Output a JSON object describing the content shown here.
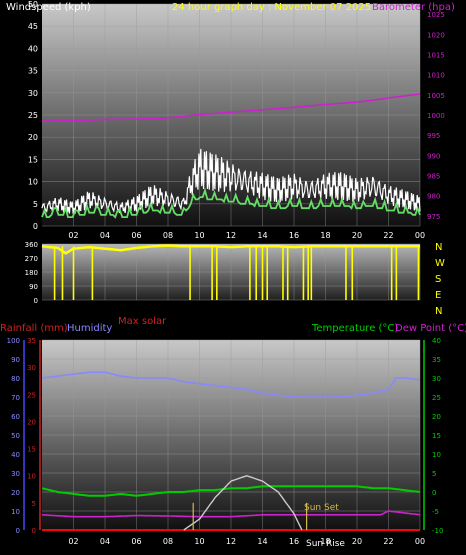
{
  "header": {
    "left_label": "Windspeed (kph)",
    "center_label": "24 hour graph day : November 07 2025",
    "right_label": "Barometer (hpa)"
  },
  "mid_labels": {
    "directions": [
      "N",
      "W",
      "S",
      "E",
      "N"
    ],
    "max_solar": "Max solar"
  },
  "bottom_header": {
    "rainfall": "Rainfall (mm)",
    "humidity": "Humidity",
    "temperature": "Temperature (°C)",
    "dew_point": "Dew Point (°C)"
  },
  "annotations": {
    "sun_set": "Sun Set",
    "sun_rise": "Sun Rise"
  },
  "colors": {
    "windspeed": "#ffffff",
    "gust": "#ffffff",
    "avg_wind": "#66dd66",
    "barometer": "#cc22cc",
    "direction": "#ffff00",
    "humidity": "#8888ff",
    "temperature": "#00cc00",
    "dew_point": "#cc22cc",
    "rainfall": "#ff0000",
    "solar": "#cccccc"
  },
  "chart_data": [
    {
      "type": "line",
      "name": "wind-and-pressure",
      "x_ticks": [
        "02",
        "04",
        "06",
        "08",
        "10",
        "12",
        "14",
        "16",
        "18",
        "20",
        "22",
        "00"
      ],
      "left_axis": {
        "label": "Windspeed (kph)",
        "ticks": [
          0,
          5,
          10,
          15,
          20,
          25,
          30,
          35,
          40,
          45,
          50
        ],
        "ylim": [
          0,
          50
        ]
      },
      "right_axis": {
        "label": "Barometer (hpa)",
        "ticks": [
          975,
          980,
          985,
          990,
          995,
          1000,
          1005,
          1010,
          1015,
          1020,
          1025
        ],
        "ylim": [
          972.5,
          1027.5
        ]
      },
      "series": [
        {
          "name": "Windspeed (kph)",
          "hours": [
            0,
            1,
            2,
            3,
            4,
            5,
            6,
            7,
            8,
            9,
            9.5,
            10,
            11,
            12,
            13,
            14,
            15,
            16,
            17,
            18,
            19,
            20,
            21,
            22,
            23,
            24
          ],
          "values": [
            4,
            5,
            4,
            6,
            5,
            4,
            5,
            7,
            6,
            5,
            10,
            13,
            12,
            11,
            10,
            9,
            8,
            9,
            8,
            9,
            9,
            8,
            9,
            7,
            6,
            5
          ]
        },
        {
          "name": "Barometer (hpa)",
          "hours": [
            0,
            2,
            4,
            6,
            8,
            10,
            12,
            14,
            16,
            18,
            20,
            22,
            24
          ],
          "values": [
            998.5,
            998.6,
            998.9,
            999.0,
            999.3,
            1000.1,
            1000.7,
            1001.3,
            1001.9,
            1002.6,
            1003.2,
            1004.2,
            1005.2
          ]
        }
      ]
    },
    {
      "type": "scatter",
      "name": "wind-direction",
      "y_ticks": [
        360,
        270,
        180,
        90,
        0
      ],
      "ylim": [
        0,
        360
      ],
      "series": [
        {
          "name": "Wind Direction",
          "hours": [
            0,
            0.5,
            1,
            1.5,
            2,
            3,
            4,
            5,
            6,
            7,
            8,
            9,
            10,
            11,
            12,
            13,
            14,
            15,
            16,
            17,
            18,
            19,
            20,
            21,
            22,
            23,
            24
          ],
          "values": [
            345,
            340,
            335,
            300,
            330,
            340,
            330,
            320,
            335,
            345,
            350,
            345,
            345,
            345,
            340,
            345,
            345,
            345,
            340,
            345,
            345,
            345,
            345,
            345,
            345,
            345,
            345
          ]
        }
      ]
    },
    {
      "type": "line",
      "name": "temperature-humidity-rain",
      "x_ticks": [
        "02",
        "04",
        "06",
        "08",
        "10",
        "12",
        "14",
        "16",
        "18",
        "20",
        "22",
        "00"
      ],
      "rain_axis": {
        "label": "Rainfall (mm)",
        "ticks": [
          0,
          5,
          10,
          15,
          20,
          25,
          30,
          35
        ],
        "ylim": [
          0,
          35
        ]
      },
      "humidity_axis": {
        "label": "Humidity",
        "ticks": [
          0,
          10,
          20,
          30,
          40,
          50,
          60,
          70,
          80,
          90,
          100
        ],
        "ylim": [
          0,
          100
        ]
      },
      "temp_axis": {
        "label": "Temperature (°C)",
        "ticks": [
          -10,
          -5,
          0,
          5,
          10,
          15,
          20,
          25,
          30,
          35,
          40
        ],
        "ylim": [
          -10,
          40
        ]
      },
      "series": [
        {
          "name": "Humidity",
          "hours": [
            0,
            1,
            2,
            3,
            4,
            5,
            6,
            7,
            8,
            9,
            10,
            11,
            12,
            13,
            14,
            15,
            16,
            17,
            18,
            19,
            20,
            21,
            22,
            22.5,
            23,
            24
          ],
          "values": [
            80,
            81,
            82,
            83,
            83,
            81,
            80,
            80,
            80,
            78,
            77,
            76,
            75,
            74,
            72,
            71,
            70,
            70,
            70,
            70,
            71,
            72,
            74,
            80,
            80,
            79
          ]
        },
        {
          "name": "Temperature (°C)",
          "hours": [
            0,
            1,
            2,
            3,
            4,
            5,
            6,
            7,
            8,
            9,
            10,
            11,
            12,
            13,
            14,
            15,
            16,
            17,
            18,
            19,
            20,
            21,
            22,
            23,
            24
          ],
          "values": [
            1,
            0,
            -0.5,
            -1,
            -1,
            -0.5,
            -1,
            -0.5,
            0,
            0,
            0.5,
            0.5,
            1,
            1,
            1.5,
            1.5,
            1.5,
            1.5,
            1.5,
            1.5,
            1.5,
            1,
            1,
            0.5,
            0
          ]
        },
        {
          "name": "Dew Point (°C)",
          "hours": [
            0,
            2,
            4,
            6,
            8,
            10,
            12,
            14,
            16,
            18,
            20,
            21.5,
            22,
            23,
            24
          ],
          "values": [
            -6,
            -6.5,
            -6.5,
            -6.2,
            -6.3,
            -6.5,
            -6.5,
            -6,
            -6,
            -6,
            -6,
            -6,
            -5,
            -5.5,
            -6
          ]
        },
        {
          "name": "Rainfall (mm)",
          "hours": [
            0,
            24
          ],
          "values": [
            0,
            0
          ]
        },
        {
          "name": "Max solar",
          "hours": [
            9,
            10,
            11,
            12,
            13,
            14,
            15,
            16,
            16.5
          ],
          "values": [
            0,
            2,
            6,
            9,
            10,
            9,
            7,
            3,
            0
          ]
        }
      ]
    }
  ]
}
